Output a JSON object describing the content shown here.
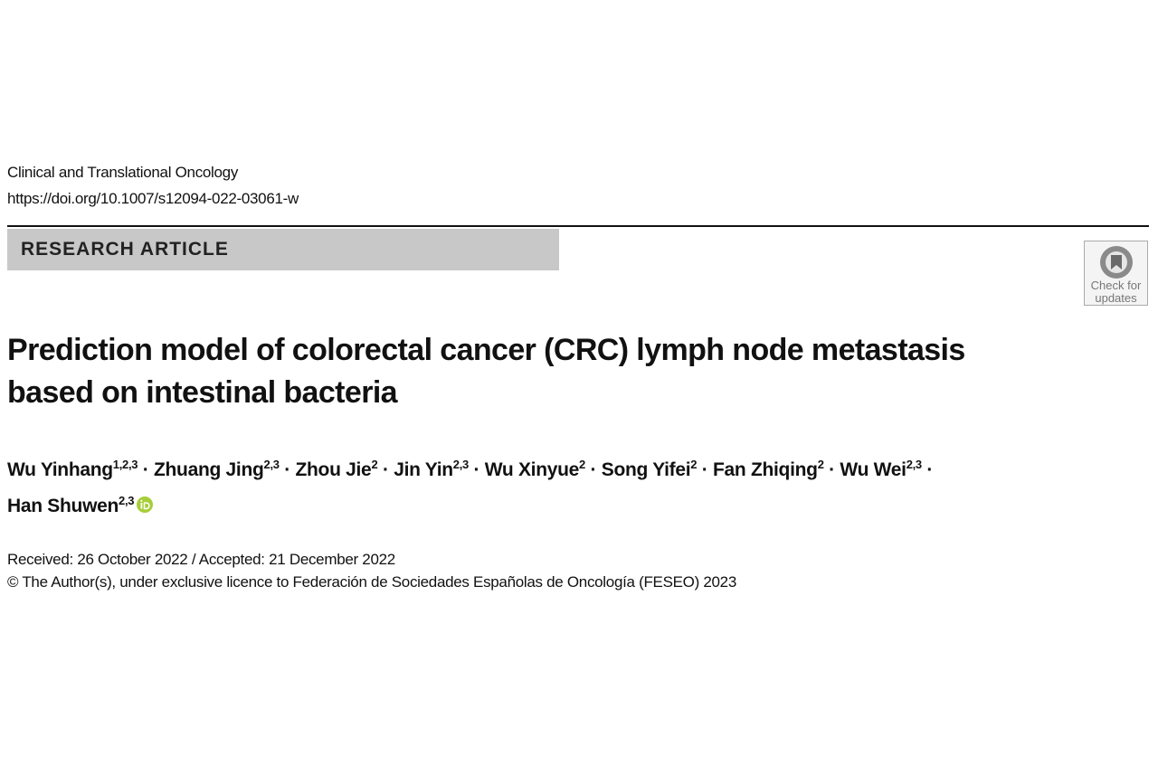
{
  "header": {
    "journal": "Clinical and Translational Oncology",
    "doi": "https://doi.org/10.1007/s12094-022-03061-w"
  },
  "section": "RESEARCH ARTICLE",
  "badge": {
    "lines": [
      "Check for",
      "updates"
    ]
  },
  "title": [
    "Prediction model of colorectal cancer (CRC) lymph node metastasis",
    "based on intestinal bacteria"
  ],
  "authors": [
    {
      "name": "Wu Yinhang",
      "affiliations": "1,2,3"
    },
    {
      "name": "Zhuang Jing",
      "affiliations": "2,3"
    },
    {
      "name": "Zhou Jie",
      "affiliations": "2"
    },
    {
      "name": "Jin Yin",
      "affiliations": "2,3"
    },
    {
      "name": "Wu Xinyue",
      "affiliations": "2"
    },
    {
      "name": "Song Yifei",
      "affiliations": "2"
    },
    {
      "name": "Fan Zhiqing",
      "affiliations": "2"
    },
    {
      "name": "Wu Wei",
      "affiliations": "2,3"
    },
    {
      "name": "Han Shuwen",
      "affiliations": "2,3"
    }
  ],
  "author_separator": "·",
  "dates": "Received: 26 October 2022 / Accepted: 21 December 2022",
  "copyright": "© The Author(s), under exclusive licence to Federación de Sociedades Españolas de Oncología (FESEO) 2023"
}
